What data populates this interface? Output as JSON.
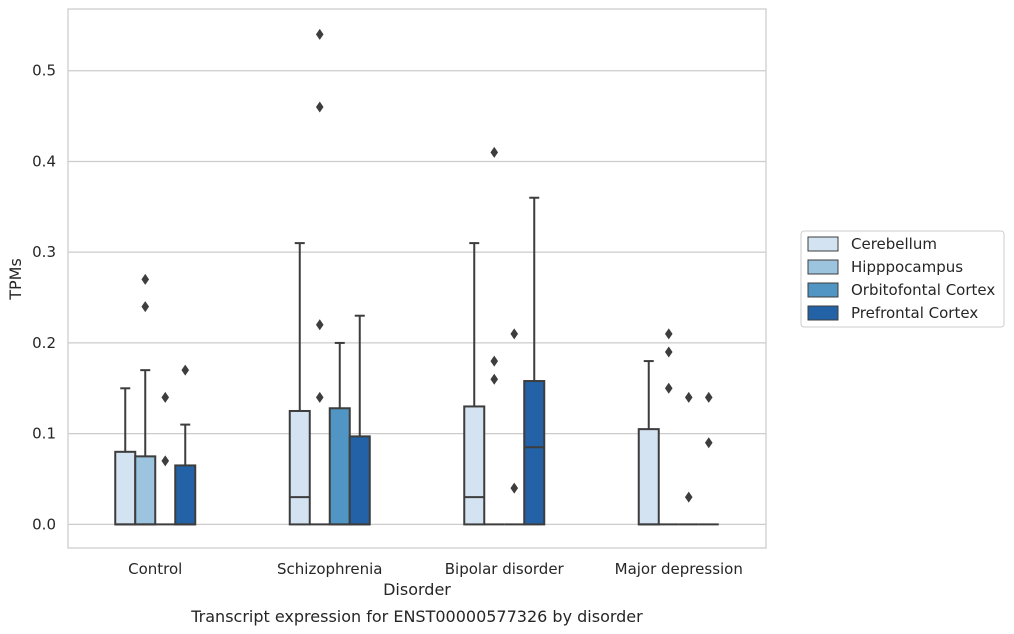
{
  "chart_data": {
    "type": "box",
    "caption": "Transcript expression for ENST00000577326 by disorder",
    "xlabel": "Disorder",
    "ylabel": "TPMs",
    "ylim": [
      -0.026,
      0.568
    ],
    "yticks": [
      0.0,
      0.1,
      0.2,
      0.3,
      0.4,
      0.5
    ],
    "ytick_labels": [
      "0.0",
      "0.1",
      "0.2",
      "0.3",
      "0.4",
      "0.5"
    ],
    "grid": "horizontal",
    "legend_position": "right",
    "categories": [
      "Control",
      "Schizophrenia",
      "Bipolar disorder",
      "Major depression"
    ],
    "colors": {
      "Cerebellum": "#d4e3f1",
      "Hipppocampus": "#9dc4de",
      "Orbitofontal Cortex": "#5195c4",
      "Prefrontal Cortex": "#2362a6",
      "edge": "#3d3d3d",
      "grid": "#cccccc",
      "frame": "#cccccc"
    },
    "series": [
      {
        "name": "Cerebellum",
        "boxes": [
          {
            "q1": 0.0,
            "median": 0.0,
            "q3": 0.08,
            "whisker_low": 0.0,
            "whisker_high": 0.15,
            "outliers": []
          },
          {
            "q1": 0.0,
            "median": 0.03,
            "q3": 0.125,
            "whisker_low": 0.0,
            "whisker_high": 0.31,
            "outliers": []
          },
          {
            "q1": 0.0,
            "median": 0.03,
            "q3": 0.13,
            "whisker_low": 0.0,
            "whisker_high": 0.31,
            "outliers": []
          },
          {
            "q1": 0.0,
            "median": 0.0,
            "q3": 0.105,
            "whisker_low": 0.0,
            "whisker_high": 0.18,
            "outliers": []
          }
        ]
      },
      {
        "name": "Hipppocampus",
        "boxes": [
          {
            "q1": 0.0,
            "median": 0.0,
            "q3": 0.075,
            "whisker_low": 0.0,
            "whisker_high": 0.17,
            "outliers": [
              0.24,
              0.27
            ]
          },
          {
            "q1": 0.0,
            "median": 0.0,
            "q3": 0.0,
            "whisker_low": 0.0,
            "whisker_high": 0.0,
            "outliers": [
              0.14,
              0.22,
              0.46,
              0.54
            ]
          },
          {
            "q1": 0.0,
            "median": 0.0,
            "q3": 0.0,
            "whisker_low": 0.0,
            "whisker_high": 0.0,
            "outliers": [
              0.16,
              0.18,
              0.41
            ]
          },
          {
            "q1": 0.0,
            "median": 0.0,
            "q3": 0.0,
            "whisker_low": 0.0,
            "whisker_high": 0.0,
            "outliers": [
              0.15,
              0.19,
              0.21
            ]
          }
        ]
      },
      {
        "name": "Orbitofontal Cortex",
        "boxes": [
          {
            "q1": 0.0,
            "median": 0.0,
            "q3": 0.0,
            "whisker_low": 0.0,
            "whisker_high": 0.0,
            "outliers": [
              0.07,
              0.14
            ]
          },
          {
            "q1": 0.0,
            "median": 0.0,
            "q3": 0.128,
            "whisker_low": 0.0,
            "whisker_high": 0.2,
            "outliers": []
          },
          {
            "q1": 0.0,
            "median": 0.0,
            "q3": 0.0,
            "whisker_low": 0.0,
            "whisker_high": 0.0,
            "outliers": [
              0.04,
              0.21
            ]
          },
          {
            "q1": 0.0,
            "median": 0.0,
            "q3": 0.0,
            "whisker_low": 0.0,
            "whisker_high": 0.0,
            "outliers": [
              0.03,
              0.14
            ]
          }
        ]
      },
      {
        "name": "Prefrontal Cortex",
        "boxes": [
          {
            "q1": 0.0,
            "median": 0.0,
            "q3": 0.065,
            "whisker_low": 0.0,
            "whisker_high": 0.11,
            "outliers": [
              0.17
            ]
          },
          {
            "q1": 0.0,
            "median": 0.0,
            "q3": 0.097,
            "whisker_low": 0.0,
            "whisker_high": 0.23,
            "outliers": []
          },
          {
            "q1": 0.0,
            "median": 0.085,
            "q3": 0.158,
            "whisker_low": 0.0,
            "whisker_high": 0.36,
            "outliers": []
          },
          {
            "q1": 0.0,
            "median": 0.0,
            "q3": 0.0,
            "whisker_low": 0.0,
            "whisker_high": 0.0,
            "outliers": [
              0.09,
              0.14
            ]
          }
        ]
      }
    ]
  }
}
